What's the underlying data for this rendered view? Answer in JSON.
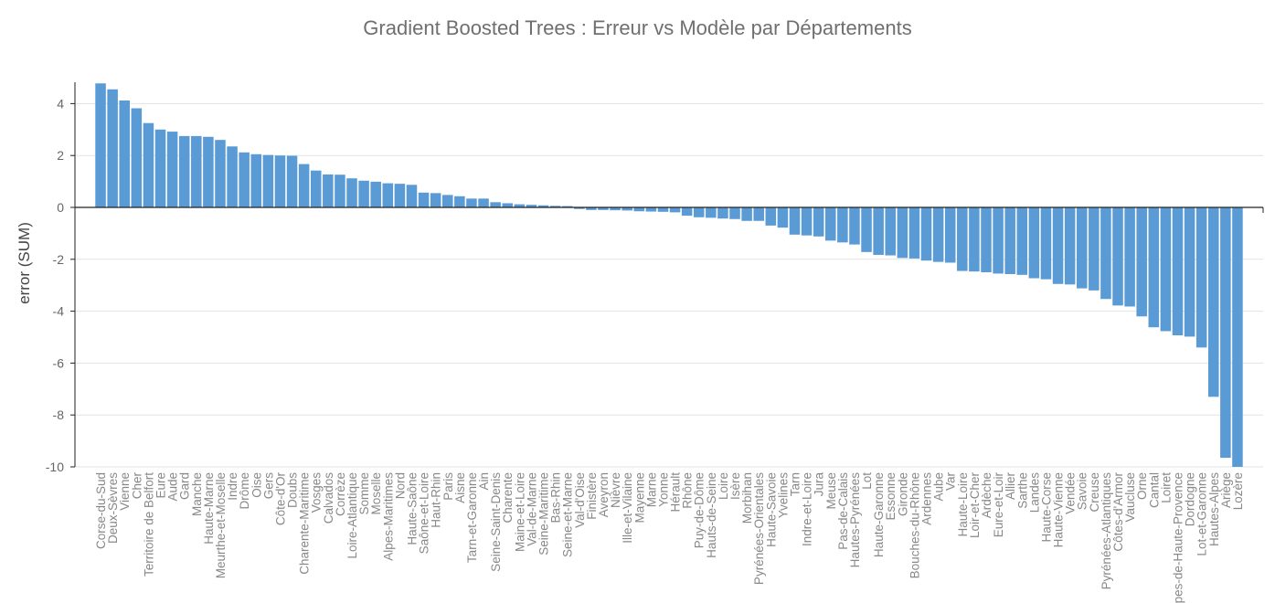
{
  "chart_data": {
    "type": "bar",
    "title": "Gradient Boosted Trees : Erreur vs Modèle par Départements",
    "xlabel": "",
    "ylabel": "error (SUM)",
    "ylim": [
      -10,
      4.8
    ],
    "yticks": [
      4,
      2,
      0,
      -2,
      -4,
      -6,
      -8,
      -10
    ],
    "grid": true,
    "bar_color": "#5b9bd5",
    "categories": [
      "Corse-du-Sud",
      "Deux-Sèvres",
      "Vienne",
      "Cher",
      "Territoire de Belfort",
      "Eure",
      "Aude",
      "Gard",
      "Manche",
      "Haute-Marne",
      "Meurthe-et-Moselle",
      "Indre",
      "Drôme",
      "Oise",
      "Gers",
      "Côte-d'Or",
      "Doubs",
      "Charente-Maritime",
      "Vosges",
      "Calvados",
      "Corrèze",
      "Loire-Atlantique",
      "Somme",
      "Moselle",
      "Alpes-Maritimes",
      "Nord",
      "Haute-Saône",
      "Saône-et-Loire",
      "Haut-Rhin",
      "Paris",
      "Aisne",
      "Tarn-et-Garonne",
      "Ain",
      "Seine-Saint-Denis",
      "Charente",
      "Maine-et-Loire",
      "Val-de-Marne",
      "Seine-Maritime",
      "Bas-Rhin",
      "Seine-et-Marne",
      "Val-d'Oise",
      "Finistère",
      "Aveyron",
      "Nièvre",
      "Ille-et-Vilaine",
      "Mayenne",
      "Marne",
      "Yonne",
      "Hérault",
      "Rhône",
      "Puy-de-Dôme",
      "Hauts-de-Seine",
      "Loire",
      "Isère",
      "Morbihan",
      "Pyrénées-Orientales",
      "Haute-Savoie",
      "Yvelines",
      "Tarn",
      "Indre-et-Loire",
      "Jura",
      "Meuse",
      "Pas-de-Calais",
      "Hautes-Pyrénées",
      "Lot",
      "Haute-Garonne",
      "Essonne",
      "Gironde",
      "Bouches-du-Rhône",
      "Ardennes",
      "Aube",
      "Var",
      "Haute-Loire",
      "Loir-et-Cher",
      "Ardèche",
      "Eure-et-Loir",
      "Allier",
      "Sarthe",
      "Landes",
      "Haute-Corse",
      "Haute-Vienne",
      "Vendée",
      "Savoie",
      "Creuse",
      "Pyrénées-Atlantiques",
      "Côtes-d'Armor",
      "Vaucluse",
      "Orne",
      "Cantal",
      "Loiret",
      "Alpes-de-Haute-Provence",
      "Dordogne",
      "Lot-et-Garonne",
      "Hautes-Alpes",
      "Ariège",
      "Lozère"
    ],
    "values": [
      4.78,
      4.55,
      4.12,
      3.82,
      3.25,
      3.0,
      2.92,
      2.75,
      2.75,
      2.72,
      2.6,
      2.35,
      2.12,
      2.05,
      2.02,
      2.0,
      1.99,
      1.67,
      1.42,
      1.27,
      1.26,
      1.12,
      1.03,
      0.99,
      0.93,
      0.91,
      0.87,
      0.57,
      0.55,
      0.48,
      0.43,
      0.34,
      0.34,
      0.2,
      0.16,
      0.12,
      0.1,
      0.08,
      0.06,
      0.05,
      -0.06,
      -0.1,
      -0.1,
      -0.11,
      -0.12,
      -0.15,
      -0.16,
      -0.17,
      -0.19,
      -0.32,
      -0.38,
      -0.4,
      -0.43,
      -0.45,
      -0.52,
      -0.52,
      -0.7,
      -0.78,
      -1.05,
      -1.08,
      -1.12,
      -1.28,
      -1.35,
      -1.43,
      -1.72,
      -1.83,
      -1.85,
      -1.95,
      -1.97,
      -2.05,
      -2.1,
      -2.13,
      -2.45,
      -2.47,
      -2.5,
      -2.55,
      -2.57,
      -2.6,
      -2.73,
      -2.77,
      -2.95,
      -2.97,
      -3.12,
      -3.2,
      -3.53,
      -3.78,
      -3.82,
      -4.2,
      -4.62,
      -4.77,
      -4.93,
      -4.98,
      -5.4,
      -7.3,
      -9.65,
      -10.0
    ]
  }
}
